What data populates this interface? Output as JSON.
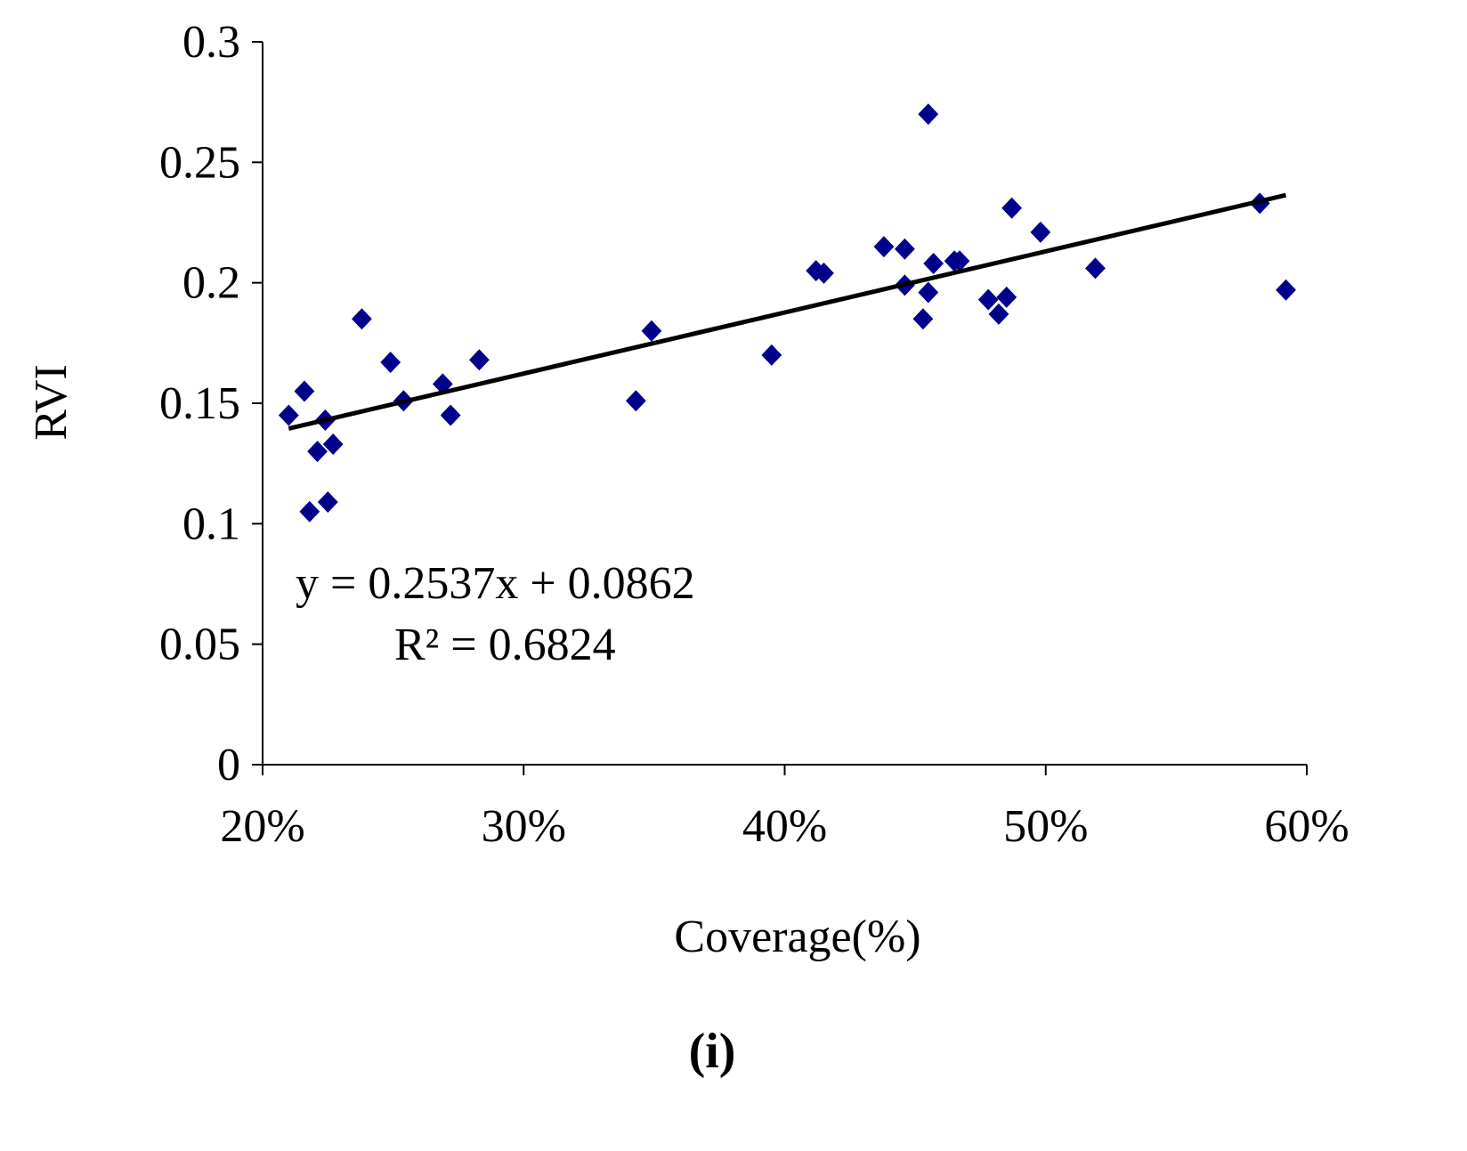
{
  "chart_data": {
    "type": "scatter",
    "title": "",
    "xlabel": "Coverage(%)",
    "ylabel": "RVI",
    "xlim": [
      0.2,
      0.6
    ],
    "ylim": [
      0,
      0.3
    ],
    "x_ticks": [
      0.2,
      0.3,
      0.4,
      0.5,
      0.6
    ],
    "x_tick_labels": [
      "20%",
      "30%",
      "40%",
      "50%",
      "60%"
    ],
    "y_ticks": [
      0,
      0.05,
      0.1,
      0.15,
      0.2,
      0.25,
      0.3
    ],
    "y_tick_labels": [
      "0",
      "0.05",
      "0.1",
      "0.15",
      "0.2",
      "0.25",
      "0.3"
    ],
    "grid": false,
    "marker": "diamond",
    "marker_color": "#00008b",
    "series": [
      {
        "name": "RVI",
        "points": [
          [
            0.21,
            0.145
          ],
          [
            0.216,
            0.155
          ],
          [
            0.218,
            0.105
          ],
          [
            0.221,
            0.13
          ],
          [
            0.224,
            0.143
          ],
          [
            0.225,
            0.109
          ],
          [
            0.227,
            0.133
          ],
          [
            0.238,
            0.185
          ],
          [
            0.249,
            0.167
          ],
          [
            0.254,
            0.151
          ],
          [
            0.269,
            0.158
          ],
          [
            0.272,
            0.145
          ],
          [
            0.283,
            0.168
          ],
          [
            0.343,
            0.151
          ],
          [
            0.349,
            0.18
          ],
          [
            0.395,
            0.17
          ],
          [
            0.412,
            0.205
          ],
          [
            0.415,
            0.204
          ],
          [
            0.438,
            0.215
          ],
          [
            0.446,
            0.214
          ],
          [
            0.446,
            0.199
          ],
          [
            0.453,
            0.185
          ],
          [
            0.455,
            0.27
          ],
          [
            0.455,
            0.196
          ],
          [
            0.457,
            0.208
          ],
          [
            0.465,
            0.209
          ],
          [
            0.467,
            0.209
          ],
          [
            0.478,
            0.193
          ],
          [
            0.482,
            0.187
          ],
          [
            0.485,
            0.194
          ],
          [
            0.487,
            0.231
          ],
          [
            0.498,
            0.221
          ],
          [
            0.519,
            0.206
          ],
          [
            0.582,
            0.233
          ],
          [
            0.592,
            0.197
          ]
        ]
      }
    ],
    "trendline": {
      "slope": 0.2537,
      "intercept": 0.0862,
      "x_range": [
        0.21,
        0.592
      ],
      "equation_label": "y = 0.2537x + 0.0862",
      "r2_label": "R² = 0.6824"
    },
    "panel_label": "(i)"
  }
}
